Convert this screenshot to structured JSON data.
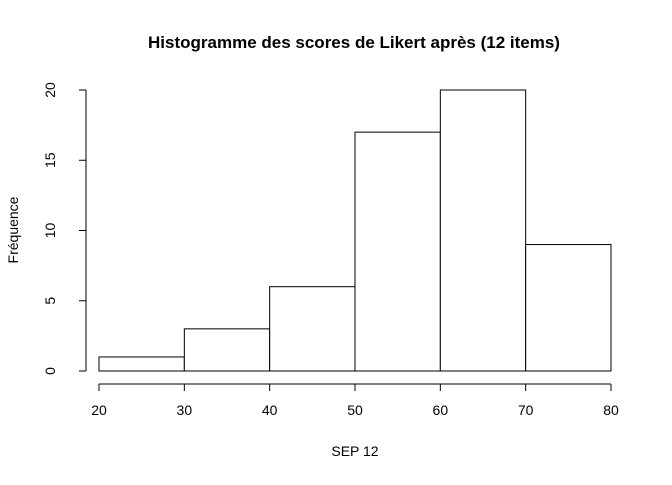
{
  "chart_data": {
    "type": "bar",
    "title": "Histogramme des scores de Likert après (12 items)",
    "xlabel": "SEP 12",
    "ylabel": "Fréquence",
    "bins": [
      {
        "x0": 20,
        "x1": 30,
        "count": 1
      },
      {
        "x0": 30,
        "x1": 40,
        "count": 3
      },
      {
        "x0": 40,
        "x1": 50,
        "count": 6
      },
      {
        "x0": 50,
        "x1": 60,
        "count": 17
      },
      {
        "x0": 60,
        "x1": 70,
        "count": 20
      },
      {
        "x0": 70,
        "x1": 80,
        "count": 9
      }
    ],
    "x_ticks": [
      20,
      30,
      40,
      50,
      60,
      70,
      80
    ],
    "y_ticks": [
      0,
      5,
      10,
      15,
      20
    ],
    "xlim": [
      20,
      80
    ],
    "ylim": [
      0,
      20
    ],
    "grid": false,
    "legend": "none"
  }
}
